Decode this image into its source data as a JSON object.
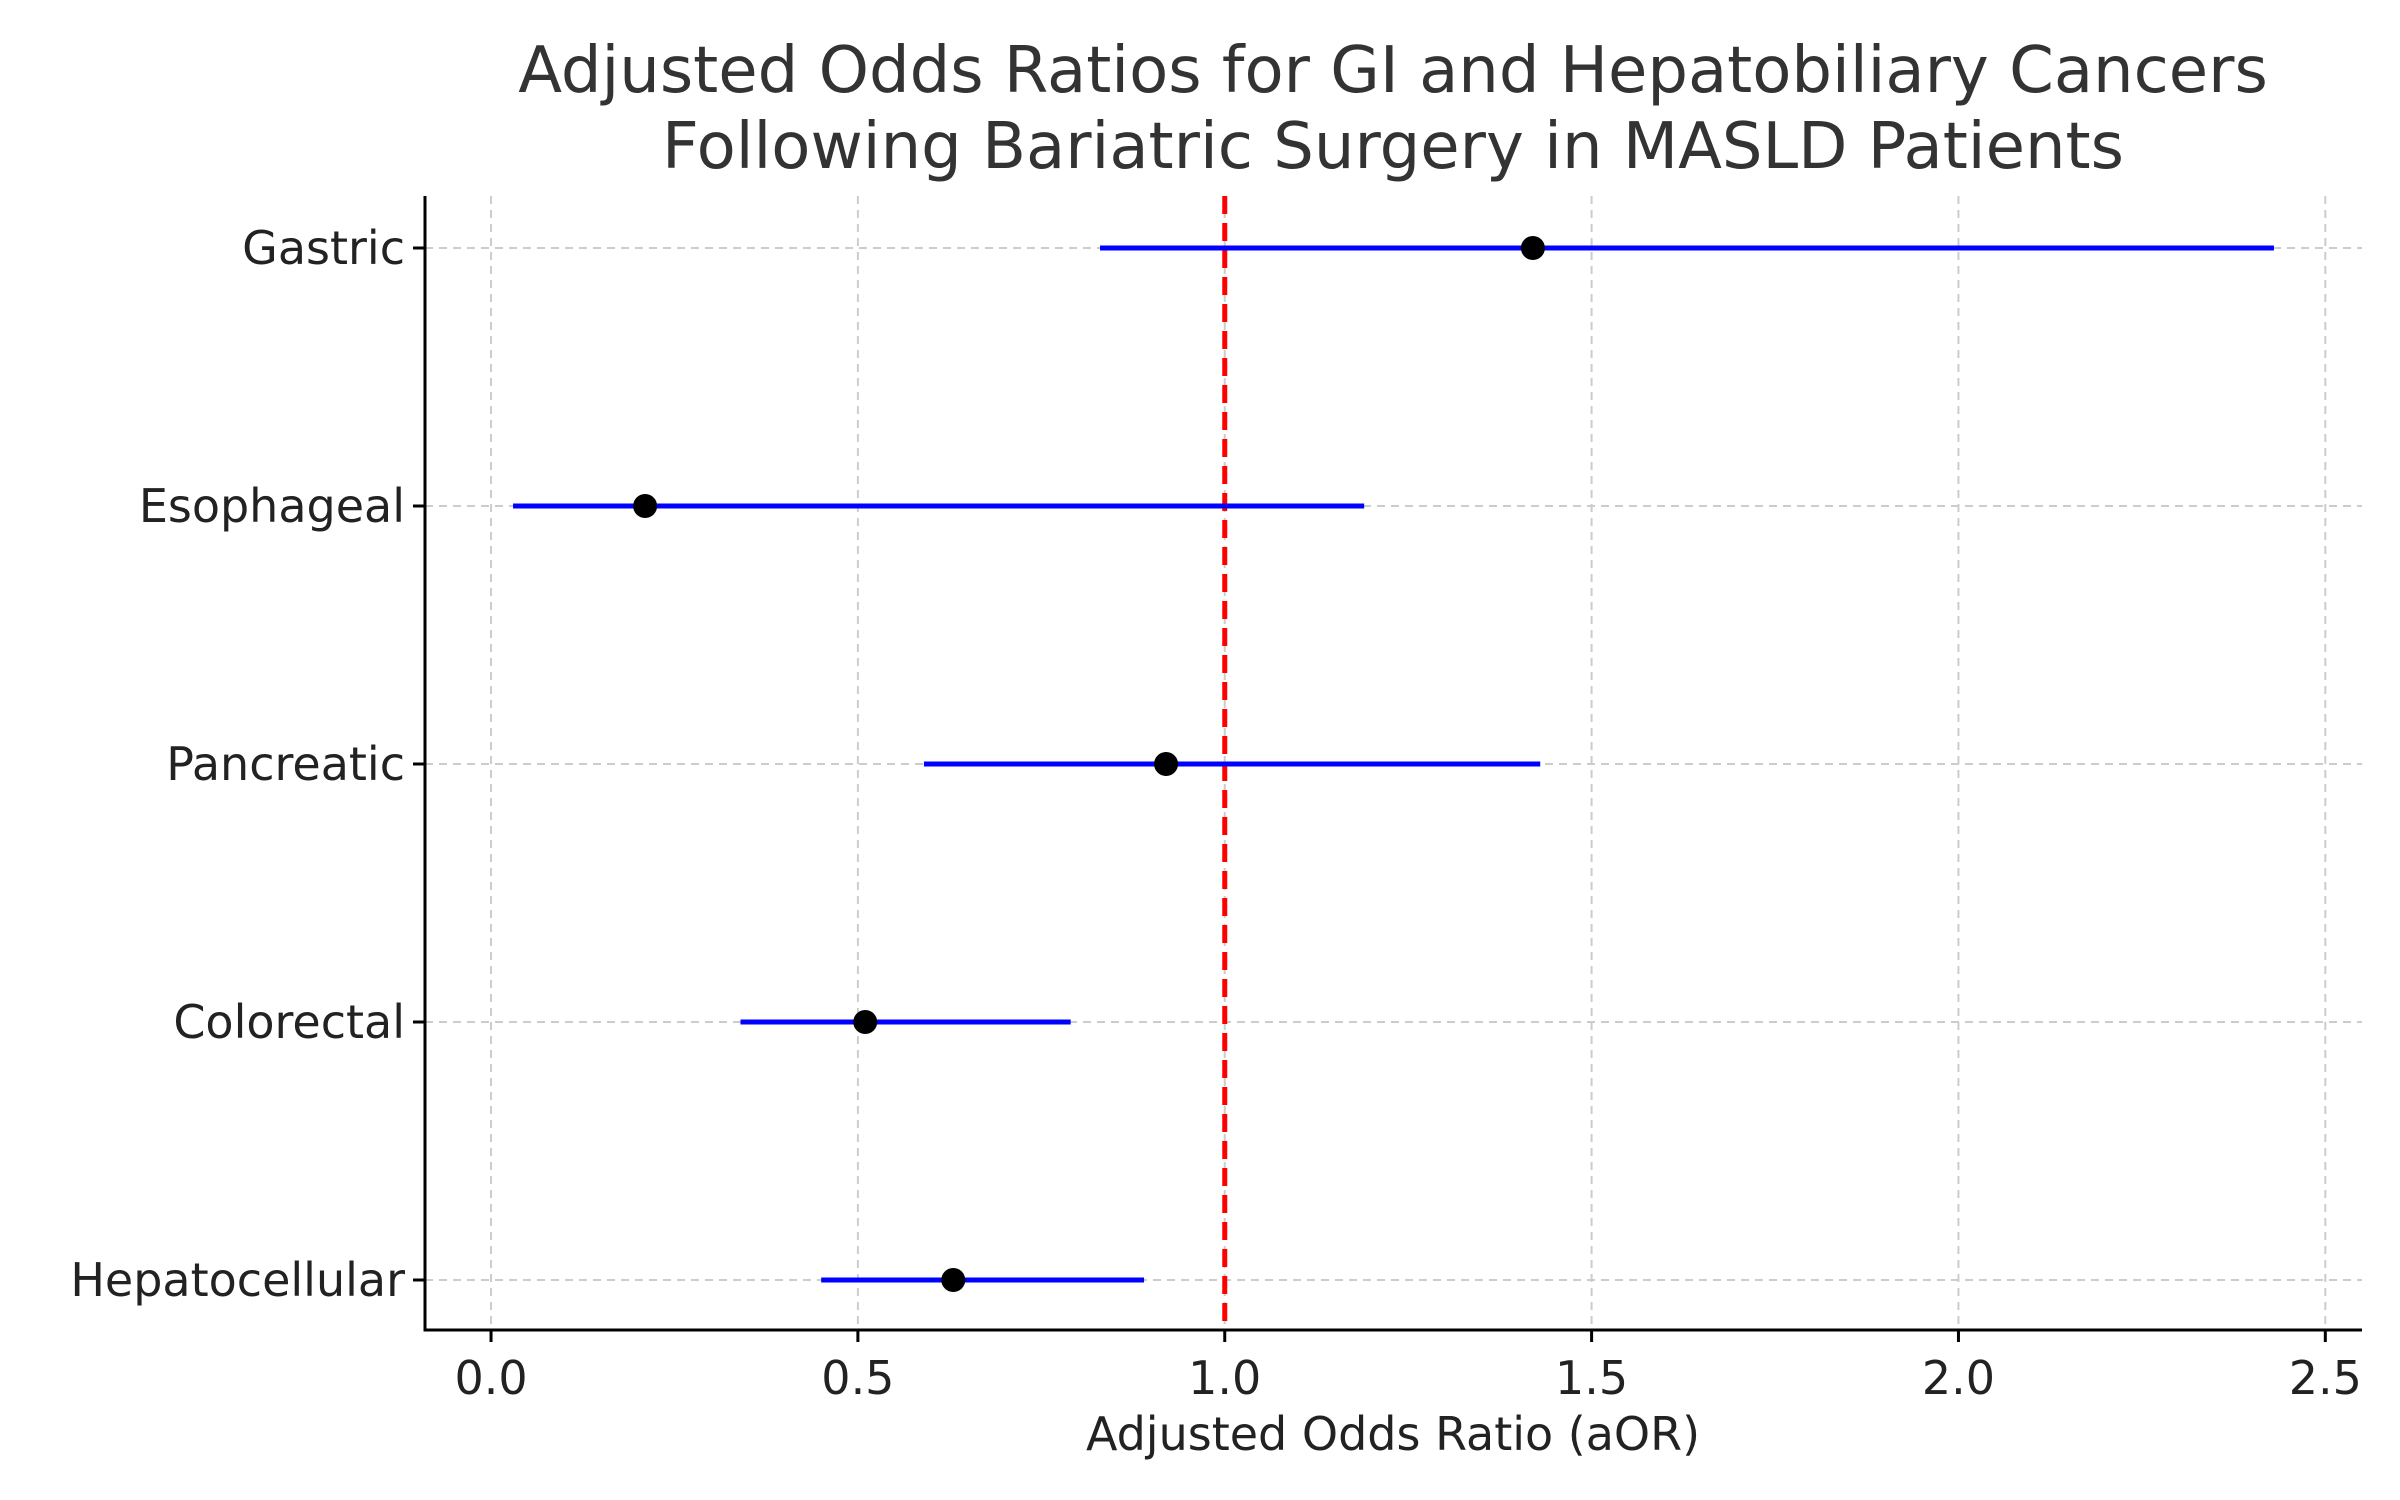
{
  "chart_data": {
    "type": "forest",
    "title": "Adjusted Odds Ratios for GI and Hepatobiliary Cancers",
    "subtitle": "Following Bariatric Surgery in MASLD Patients",
    "xlabel": "Adjusted Odds Ratio (aOR)",
    "ylabel": "",
    "xlim": [
      -0.09,
      2.55
    ],
    "x_ticks": [
      0.0,
      0.5,
      1.0,
      1.5,
      2.0,
      2.5
    ],
    "x_tick_labels": [
      "0.0",
      "0.5",
      "1.0",
      "1.5",
      "2.0",
      "2.5"
    ],
    "categories": [
      "Gastric",
      "Esophageal",
      "Pancreatic",
      "Colorectal",
      "Hepatocellular"
    ],
    "aor": [
      1.42,
      0.21,
      0.92,
      0.51,
      0.63
    ],
    "ci_lower": [
      0.83,
      0.03,
      0.59,
      0.34,
      0.45
    ],
    "ci_upper": [
      2.43,
      1.19,
      1.43,
      0.79,
      0.89
    ],
    "reference_line": 1.0,
    "grid": true,
    "colors": {
      "ci": "#0000ff",
      "point": "#000000",
      "reference": "#ff0000",
      "grid": "#cccccc",
      "title": "#333333"
    }
  }
}
